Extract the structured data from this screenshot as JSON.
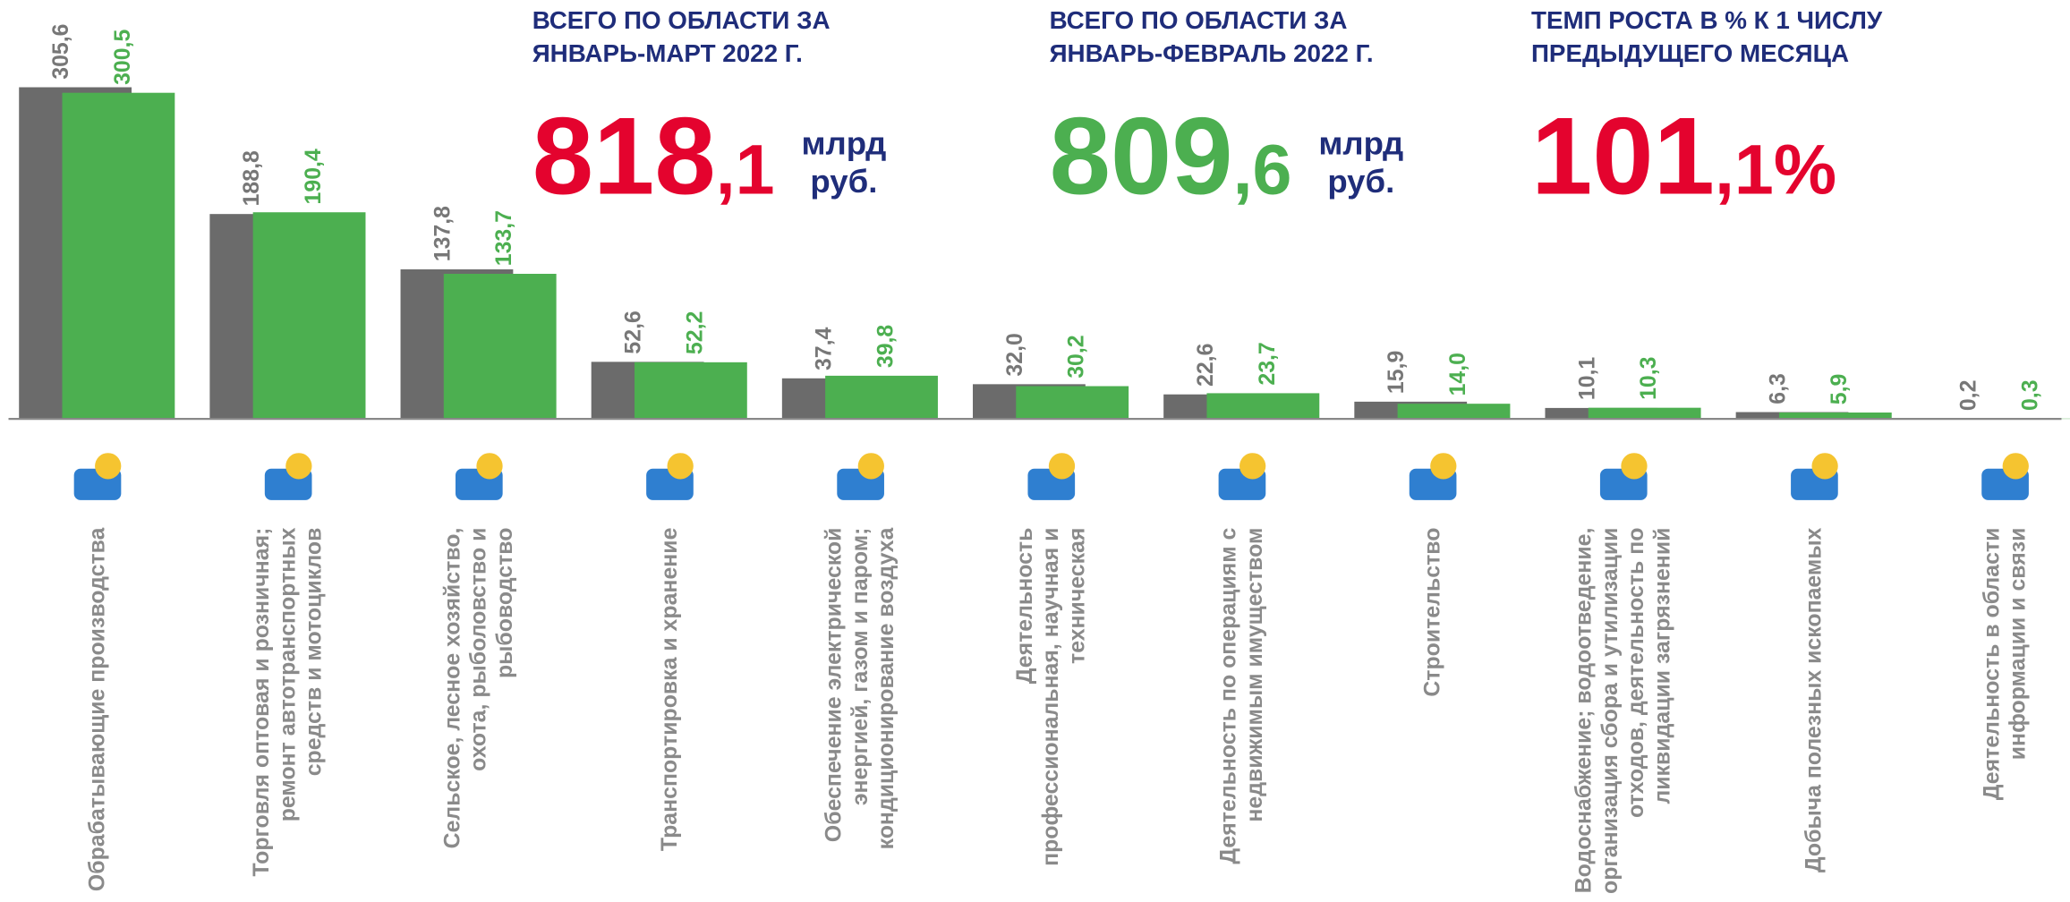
{
  "chart_data": {
    "type": "bar",
    "kpis": [
      {
        "title": [
          "ВСЕГО ПО ОБЛАСТИ ЗА",
          "ЯНВАРЬ-МАРТ 2022 Г."
        ],
        "int": "818",
        "frac": ",1",
        "unit": [
          "млрд",
          "руб."
        ],
        "color": "#e4032e"
      },
      {
        "title": [
          "ВСЕГО ПО ОБЛАСТИ ЗА",
          "ЯНВАРЬ-ФЕВРАЛЬ 2022 Г."
        ],
        "int": "809",
        "frac": ",6",
        "unit": [
          "млрд",
          "руб."
        ],
        "color": "#4caf50"
      },
      {
        "title": [
          "ТЕМП РОСТА В % К 1 ЧИСЛУ",
          "ПРЕДЫДУЩЕГО МЕСЯЦА"
        ],
        "int": "101",
        "frac": ",1%",
        "color": "#e4032e"
      }
    ],
    "categories": [
      "Обрабатывающие производства",
      "Торговля оптовая и розничная; ремонт автотранспортных средств и мотоциклов",
      "Сельское, лесное хозяйство, охота, рыболовство и рыбоводство",
      "Транспортировка и хранение",
      "Обеспечение электрической энергией, газом и паром; кондиционирование воздуха",
      "Деятельность профессиональная, научная и техническая",
      "Деятельность по операциям с недвижимым имуществом",
      "Строительство",
      "Водоснабжение; водоотведение, организация сбора и утилизации отходов, деятельность по ликвидации загрязнений",
      "Добыча полезных ископаемых",
      "Деятельность в области информации и связи"
    ],
    "series": [
      {
        "color": "#6b6b6b",
        "values": [
          305.6,
          188.8,
          137.8,
          52.6,
          37.4,
          32.0,
          22.6,
          15.9,
          10.1,
          6.3,
          0.2
        ],
        "value_labels": [
          "305,6",
          "188,8",
          "137,8",
          "52,6",
          "37,4",
          "32,0",
          "22,6",
          "15,9",
          "10,1",
          "6,3",
          "0,2"
        ]
      },
      {
        "color": "#4caf50",
        "values": [
          300.5,
          190.4,
          133.7,
          52.2,
          39.8,
          30.2,
          23.7,
          14.0,
          10.3,
          5.9,
          0.3
        ],
        "value_labels": [
          "300,5",
          "190,4",
          "133,7",
          "52,2",
          "39,8",
          "30,2",
          "23,7",
          "14,0",
          "10,3",
          "5,9",
          "0,3"
        ]
      }
    ],
    "ylim": [
      0,
      310
    ]
  }
}
